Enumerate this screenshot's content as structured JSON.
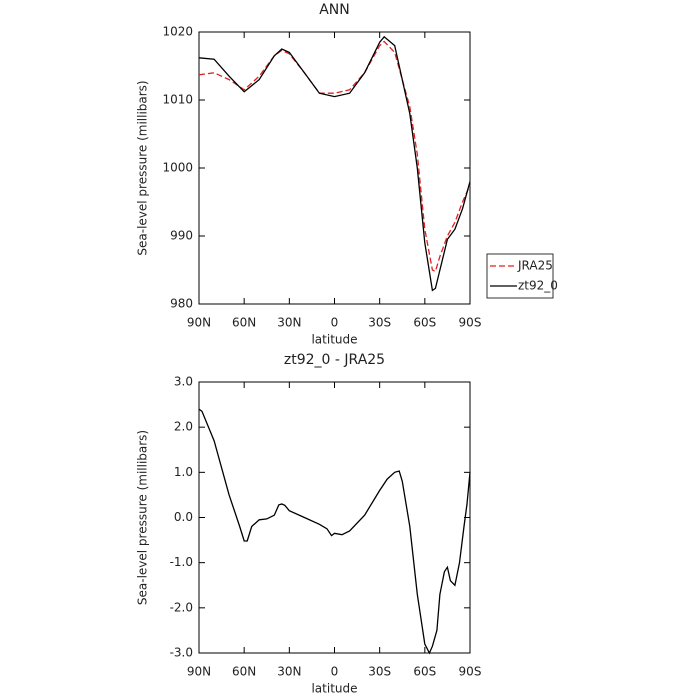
{
  "chart_data": [
    {
      "type": "line",
      "title": "ANN",
      "xlabel": "latitude",
      "ylabel": "Sea-level pressure (millibars)",
      "x": [
        90,
        80,
        70,
        60,
        50,
        40,
        35,
        30,
        20,
        10,
        0,
        -10,
        -20,
        -30,
        -33,
        -40,
        -50,
        -55,
        -60,
        -65,
        -67,
        -70,
        -75,
        -80,
        -85,
        -90
      ],
      "series": [
        {
          "name": "JRA25",
          "color": "#e02020",
          "linestyle": "dashed",
          "values": [
            1013.7,
            1014,
            1013,
            1011.5,
            1013.5,
            1016.5,
            1017.3,
            1016.8,
            1014,
            1011,
            1011,
            1011.5,
            1014,
            1018,
            1018.6,
            1017,
            1009,
            1002,
            991,
            985,
            984.8,
            987,
            990,
            992,
            995,
            997.5
          ]
        },
        {
          "name": "zt92_0",
          "color": "#000000",
          "linestyle": "solid",
          "values": [
            1016.2,
            1016,
            1013.5,
            1011.2,
            1013,
            1016.5,
            1017.5,
            1017,
            1014,
            1011,
            1010.5,
            1011,
            1014,
            1018.5,
            1019.3,
            1018,
            1008,
            1000,
            989,
            982,
            982.3,
            985,
            989.5,
            991,
            994,
            998
          ]
        }
      ],
      "xlim": [
        90,
        -90
      ],
      "xticks": [
        {
          "value": 90,
          "label": "90N"
        },
        {
          "value": 60,
          "label": "60N"
        },
        {
          "value": 30,
          "label": "30N"
        },
        0,
        {
          "value": -30,
          "label": "30S"
        },
        {
          "value": -60,
          "label": "60S"
        },
        {
          "value": -90,
          "label": "90S"
        }
      ],
      "ylim": [
        980,
        1020
      ],
      "yticks": [
        980,
        990,
        1000,
        1010,
        1020
      ],
      "legend": "right"
    },
    {
      "type": "line",
      "title": "zt92_0 - JRA25",
      "xlabel": "latitude",
      "ylabel": "Sea-level pressure (millibars)",
      "x": [
        90,
        88,
        80,
        70,
        63,
        60,
        58,
        55,
        50,
        45,
        40,
        37,
        35,
        33,
        30,
        20,
        10,
        5,
        2,
        0,
        -5,
        -10,
        -20,
        -30,
        -35,
        -40,
        -43,
        -45,
        -50,
        -55,
        -60,
        -63,
        -65,
        -68,
        -70,
        -73,
        -75,
        -77,
        -80,
        -83,
        -86,
        -88,
        -90
      ],
      "series": [
        {
          "name": "zt92_0 - JRA25",
          "color": "#000000",
          "linestyle": "solid",
          "values": [
            2.4,
            2.35,
            1.7,
            0.5,
            -0.2,
            -0.52,
            -0.52,
            -0.2,
            -0.05,
            -0.03,
            0.05,
            0.28,
            0.3,
            0.27,
            0.15,
            0.0,
            -0.15,
            -0.25,
            -0.4,
            -0.35,
            -0.38,
            -0.3,
            0.05,
            0.6,
            0.85,
            1.0,
            1.03,
            0.8,
            -0.2,
            -1.7,
            -2.8,
            -3.0,
            -2.85,
            -2.5,
            -1.7,
            -1.2,
            -1.1,
            -1.4,
            -1.5,
            -1.0,
            -0.2,
            0.3,
            1.0
          ]
        }
      ],
      "xlim": [
        90,
        -90
      ],
      "xticks": [
        {
          "value": 90,
          "label": "90N"
        },
        {
          "value": 60,
          "label": "60N"
        },
        {
          "value": 30,
          "label": "30N"
        },
        0,
        {
          "value": -30,
          "label": "30S"
        },
        {
          "value": -60,
          "label": "60S"
        },
        {
          "value": -90,
          "label": "90S"
        }
      ],
      "ylim": [
        -3,
        3
      ],
      "yticks": [
        {
          "value": -3,
          "label": "-3.0"
        },
        {
          "value": -2,
          "label": "-2.0"
        },
        {
          "value": -1,
          "label": "-1.0"
        },
        {
          "value": 0,
          "label": "0.0"
        },
        {
          "value": 1,
          "label": "1.0"
        },
        {
          "value": 2,
          "label": "2.0"
        },
        {
          "value": 3,
          "label": "3.0"
        }
      ]
    }
  ]
}
